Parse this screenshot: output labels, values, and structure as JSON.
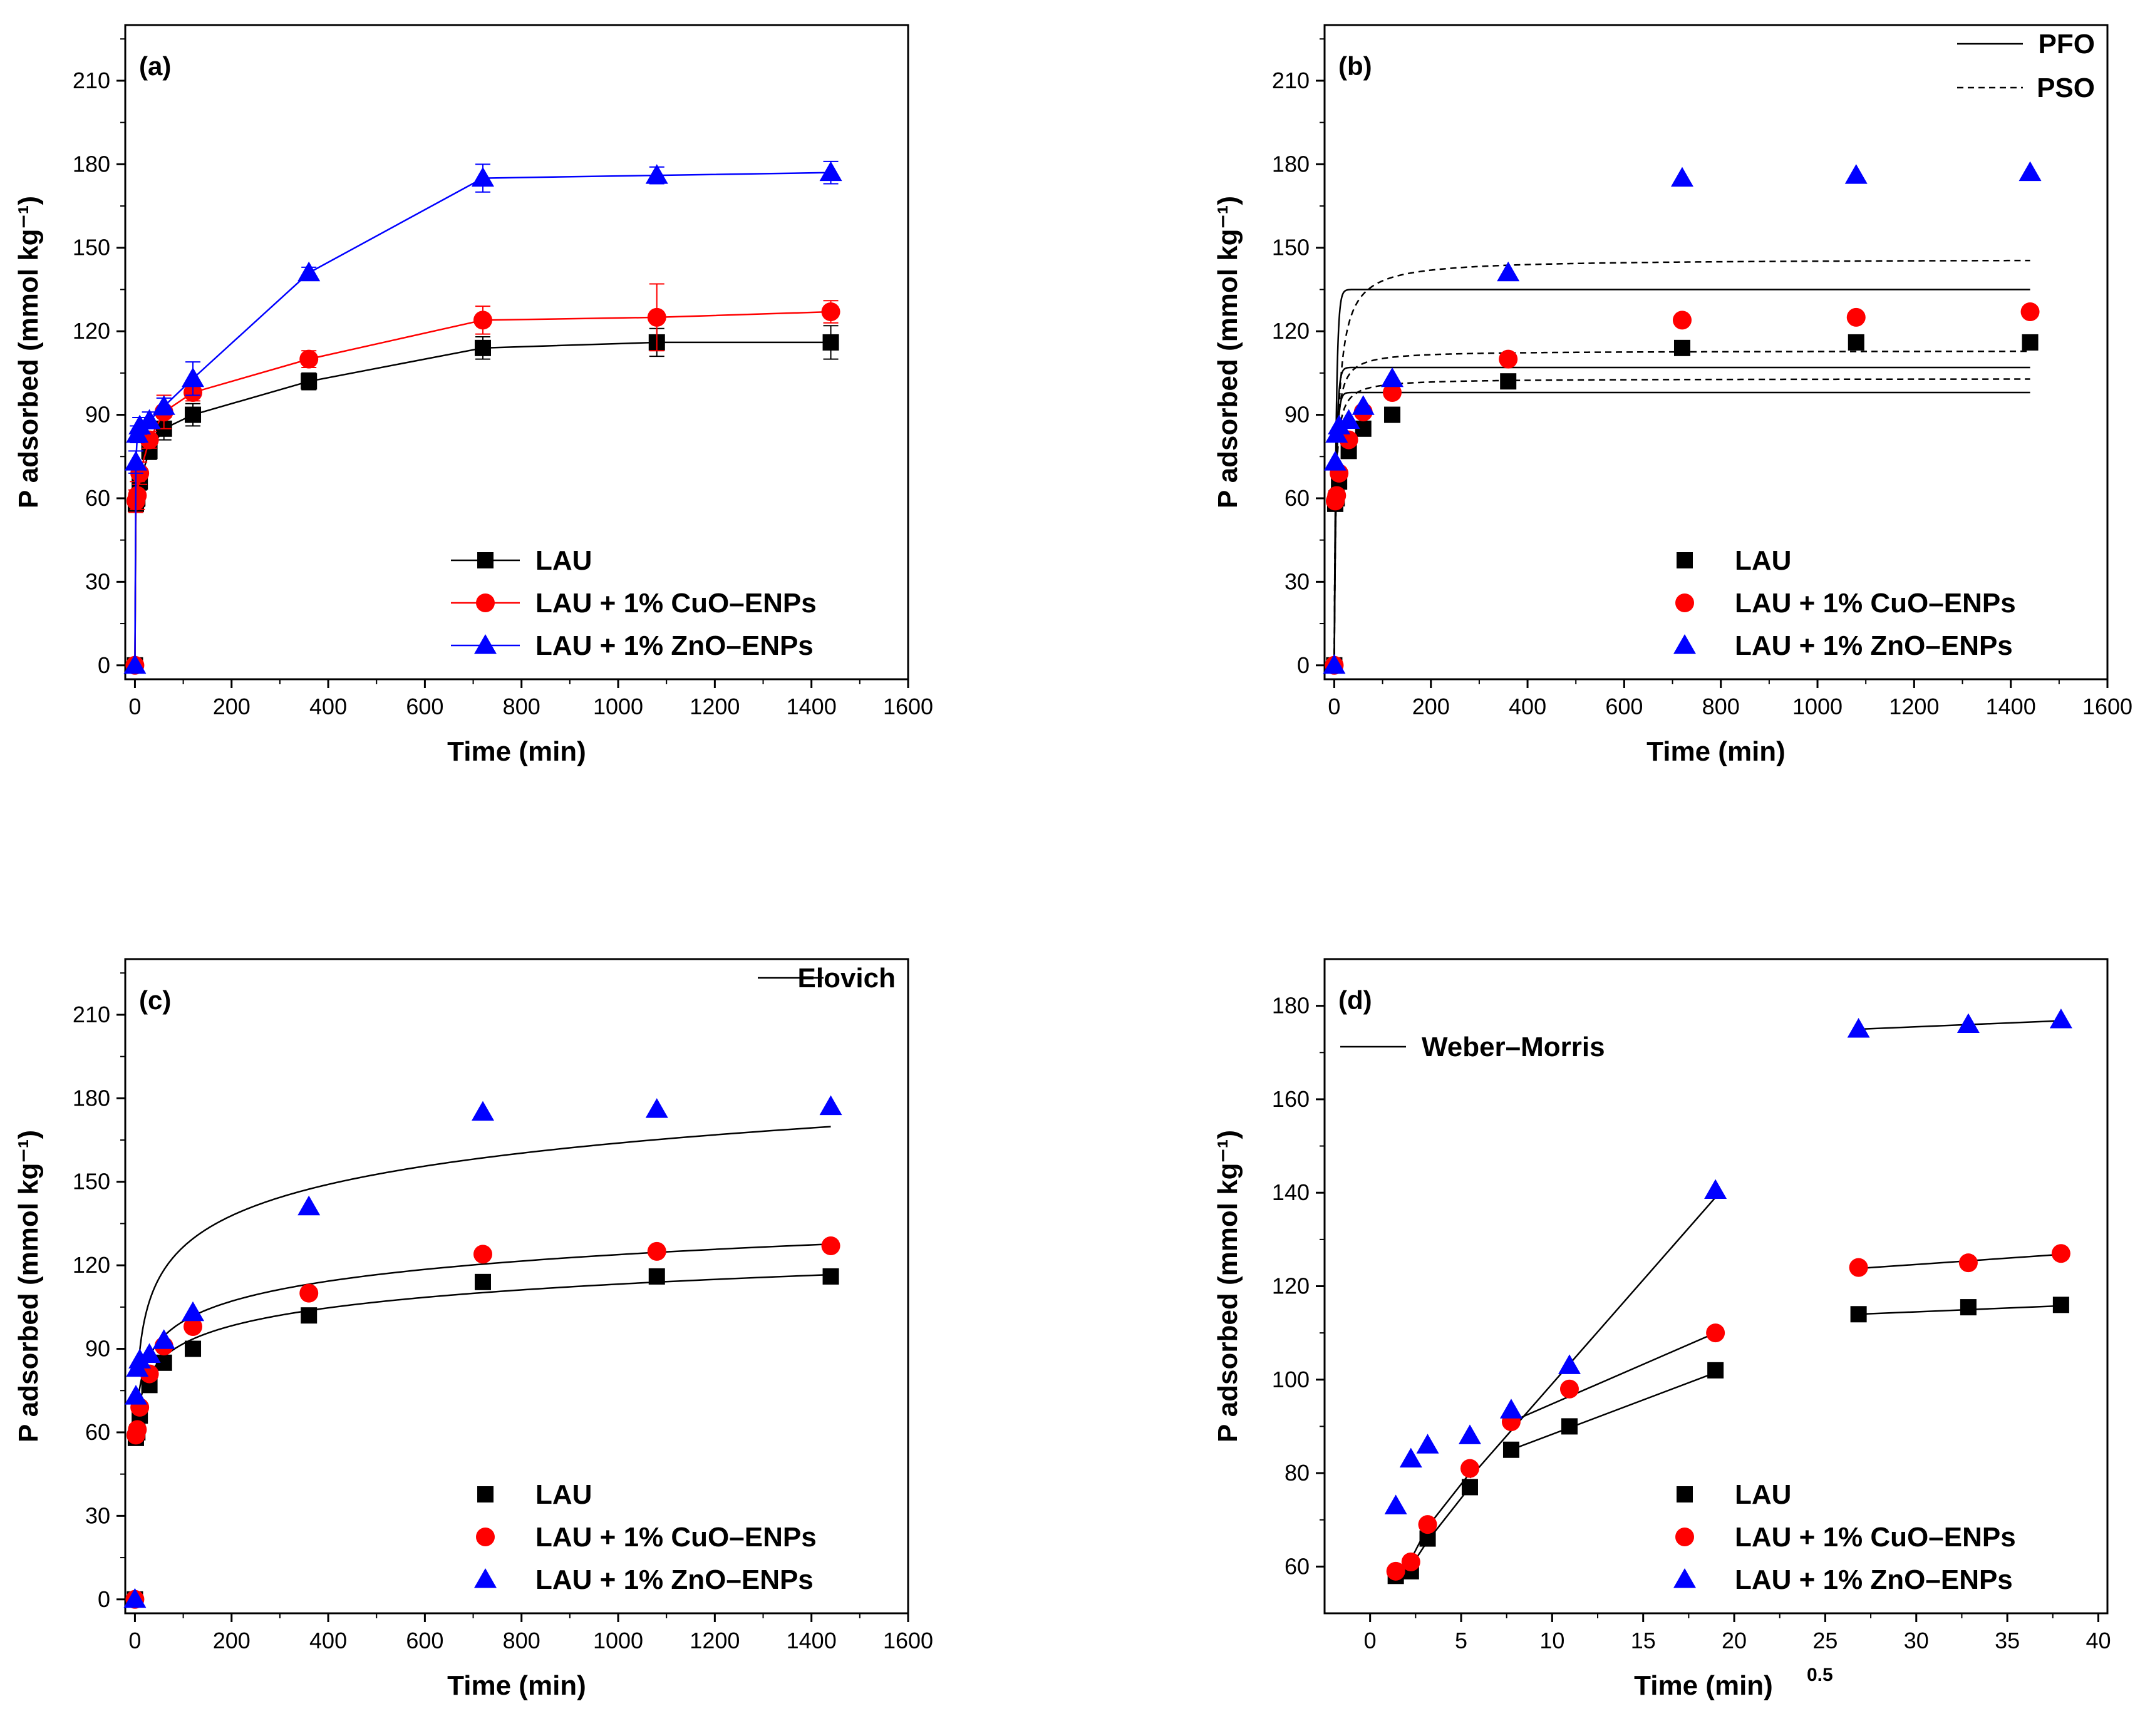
{
  "colors": {
    "black": "#000000",
    "red": "#ff0000",
    "blue": "#0000ff"
  },
  "chart_data": [
    {
      "id": "a",
      "type": "line",
      "panel_label": "(a)",
      "xlabel": "Time (min)",
      "ylabel": "P adsorbed (mmol kg⁻¹)",
      "xlim": [
        -20,
        1600
      ],
      "ylim": [
        -5,
        230
      ],
      "xticks": [
        0,
        200,
        400,
        600,
        800,
        1000,
        1200,
        1400,
        1600
      ],
      "yticks": [
        0,
        30,
        60,
        90,
        120,
        150,
        180,
        210
      ],
      "legend": "bottom-right",
      "series": [
        {
          "name": "LAU",
          "color": "black",
          "marker": "square",
          "x": [
            0,
            2,
            5,
            10,
            30,
            60,
            120,
            360,
            720,
            1080,
            1440
          ],
          "y": [
            0,
            58,
            60,
            66,
            77,
            85,
            90,
            102,
            114,
            116,
            116
          ],
          "err": [
            0,
            3,
            3,
            3,
            3,
            4,
            4,
            3,
            4,
            5,
            6
          ]
        },
        {
          "name": "LAU + 1% CuO–ENPs",
          "color": "red",
          "marker": "circle",
          "x": [
            0,
            2,
            5,
            10,
            30,
            60,
            120,
            360,
            720,
            1080,
            1440
          ],
          "y": [
            0,
            59,
            61,
            69,
            81,
            91,
            98,
            110,
            124,
            125,
            127
          ],
          "err": [
            0,
            4,
            5,
            4,
            3,
            6,
            3,
            3,
            5,
            12,
            4
          ]
        },
        {
          "name": "LAU + 1% ZnO–ENPs",
          "color": "blue",
          "marker": "triangle",
          "x": [
            0,
            2,
            5,
            10,
            30,
            60,
            120,
            360,
            720,
            1080,
            1440
          ],
          "y": [
            0,
            73,
            83,
            86,
            88,
            93,
            103,
            141,
            175,
            176,
            177
          ],
          "err": [
            0,
            4,
            3,
            3,
            3,
            3,
            6,
            2,
            5,
            3,
            4
          ]
        }
      ]
    },
    {
      "id": "b",
      "type": "scatter",
      "panel_label": "(b)",
      "xlabel": "Time (min)",
      "ylabel": "P adsorbed (mmol kg⁻¹)",
      "xlim": [
        -20,
        1600
      ],
      "ylim": [
        -5,
        230
      ],
      "xticks": [
        0,
        200,
        400,
        600,
        800,
        1000,
        1200,
        1400,
        1600
      ],
      "yticks": [
        0,
        30,
        60,
        90,
        120,
        150,
        180,
        210
      ],
      "legend": "bottom-right",
      "fit_legend": [
        "PFO",
        "PSO"
      ],
      "series": [
        {
          "name": "LAU",
          "color": "black",
          "marker": "square",
          "x": [
            0,
            2,
            5,
            10,
            30,
            60,
            120,
            360,
            720,
            1080,
            1440
          ],
          "y": [
            0,
            58,
            60,
            66,
            77,
            85,
            90,
            102,
            114,
            116,
            116
          ]
        },
        {
          "name": "LAU + 1% CuO–ENPs",
          "color": "red",
          "marker": "circle",
          "x": [
            0,
            2,
            5,
            10,
            30,
            60,
            120,
            360,
            720,
            1080,
            1440
          ],
          "y": [
            0,
            59,
            61,
            69,
            81,
            91,
            98,
            110,
            124,
            125,
            127
          ]
        },
        {
          "name": "LAU + 1% ZnO–ENPs",
          "color": "blue",
          "marker": "triangle",
          "x": [
            0,
            2,
            5,
            10,
            30,
            60,
            120,
            360,
            720,
            1080,
            1440
          ],
          "y": [
            0,
            73,
            83,
            86,
            88,
            93,
            103,
            141,
            175,
            176,
            177
          ]
        }
      ],
      "fits": [
        {
          "model": "PFO",
          "qe": 98,
          "k": 0.25,
          "xmax": 1440
        },
        {
          "model": "PFO",
          "qe": 107,
          "k": 0.25,
          "xmax": 1440
        },
        {
          "model": "PFO",
          "qe": 135,
          "k": 0.25,
          "xmax": 1440
        },
        {
          "model": "PSO",
          "qe": 103,
          "k": 0.004,
          "xmax": 1440
        },
        {
          "model": "PSO",
          "qe": 113,
          "k": 0.0035,
          "xmax": 1440
        },
        {
          "model": "PSO",
          "qe": 146,
          "k": 0.0012,
          "xmax": 1440
        }
      ]
    },
    {
      "id": "c",
      "type": "scatter",
      "panel_label": "(c)",
      "xlabel": "Time (min)",
      "ylabel": "P adsorbed (mmol kg⁻¹)",
      "xlim": [
        -20,
        1600
      ],
      "ylim": [
        -5,
        230
      ],
      "xticks": [
        0,
        200,
        400,
        600,
        800,
        1000,
        1200,
        1400,
        1600
      ],
      "yticks": [
        0,
        30,
        60,
        90,
        120,
        150,
        180,
        210
      ],
      "legend": "bottom-right",
      "fit_legend": [
        "Elovich"
      ],
      "series": [
        {
          "name": "LAU",
          "color": "black",
          "marker": "square",
          "x": [
            0,
            2,
            5,
            10,
            30,
            60,
            120,
            360,
            720,
            1080,
            1440
          ],
          "y": [
            0,
            58,
            60,
            66,
            77,
            85,
            90,
            102,
            114,
            116,
            116
          ]
        },
        {
          "name": "LAU + 1% CuO–ENPs",
          "color": "red",
          "marker": "circle",
          "x": [
            0,
            2,
            5,
            10,
            30,
            60,
            120,
            360,
            720,
            1080,
            1440
          ],
          "y": [
            0,
            59,
            61,
            69,
            81,
            91,
            98,
            110,
            124,
            125,
            127
          ]
        },
        {
          "name": "LAU + 1% ZnO–ENPs",
          "color": "blue",
          "marker": "triangle",
          "x": [
            0,
            2,
            5,
            10,
            30,
            60,
            120,
            360,
            720,
            1080,
            1440
          ],
          "y": [
            0,
            73,
            83,
            86,
            88,
            93,
            103,
            141,
            175,
            176,
            177
          ]
        }
      ],
      "fits": [
        {
          "model": "Elovich",
          "a": 49,
          "b": 9.3,
          "xmin": 2,
          "xmax": 1440
        },
        {
          "model": "Elovich",
          "a": 52,
          "b": 10.4,
          "xmin": 2,
          "xmax": 1440
        },
        {
          "model": "Elovich",
          "a": 52,
          "b": 16.2,
          "xmin": 10,
          "xmax": 1440
        }
      ]
    },
    {
      "id": "d",
      "type": "scatter",
      "panel_label": "(d)",
      "xlabel": "Time (min)",
      "xlabel_sup": "0.5",
      "ylabel": "P adsorbed (mmol kg⁻¹)",
      "xlim": [
        -2.5,
        40.5
      ],
      "ylim": [
        50,
        190
      ],
      "xticks": [
        0,
        5,
        10,
        15,
        20,
        25,
        30,
        35,
        40
      ],
      "yticks": [
        60,
        80,
        100,
        120,
        140,
        160,
        180
      ],
      "legend": "bottom-right",
      "fit_legend": [
        "Weber–Morris"
      ],
      "series": [
        {
          "name": "LAU",
          "color": "black",
          "marker": "square",
          "x": [
            1.41,
            2.24,
            3.16,
            5.48,
            7.75,
            10.95,
            18.97,
            26.83,
            32.86,
            37.95
          ],
          "y": [
            58,
            59,
            66,
            77,
            85,
            90,
            102,
            114,
            115.5,
            116
          ]
        },
        {
          "name": "LAU + 1% CuO–ENPs",
          "color": "red",
          "marker": "circle",
          "x": [
            1.41,
            2.24,
            3.16,
            5.48,
            7.75,
            10.95,
            18.97,
            26.83,
            32.86,
            37.95
          ],
          "y": [
            59,
            61,
            69,
            81,
            91,
            98,
            110,
            124,
            125,
            127
          ]
        },
        {
          "name": "LAU + 1% ZnO–ENPs",
          "color": "blue",
          "marker": "triangle",
          "x": [
            1.41,
            2.24,
            3.16,
            5.48,
            7.75,
            10.95,
            18.97,
            26.83,
            32.86,
            37.95
          ],
          "y": [
            73,
            83,
            86,
            88,
            93.5,
            103,
            140.5,
            175,
            176,
            177
          ]
        }
      ],
      "fits": [
        {
          "model": "Weber–Morris",
          "x": [
            1.41,
            2.24,
            3.16,
            5.48
          ],
          "y": [
            57.5,
            60,
            65.5,
            77
          ]
        },
        {
          "model": "Weber–Morris",
          "x": [
            1.41,
            2.24,
            3.16,
            5.48
          ],
          "y": [
            58.5,
            61.5,
            68.5,
            80
          ]
        },
        {
          "model": "Weber–Morris",
          "x": [
            7.75,
            18.97
          ],
          "y": [
            85,
            101.5
          ]
        },
        {
          "model": "Weber–Morris",
          "x": [
            7.75,
            18.97
          ],
          "y": [
            91,
            110
          ]
        },
        {
          "model": "Weber–Morris",
          "x": [
            5.48,
            18.97
          ],
          "y": [
            79,
            139
          ]
        },
        {
          "model": "Weber–Morris",
          "x": [
            26.83,
            37.95
          ],
          "y": [
            114,
            115.8
          ]
        },
        {
          "model": "Weber–Morris",
          "x": [
            26.83,
            37.95
          ],
          "y": [
            123.8,
            126.8
          ]
        },
        {
          "model": "Weber–Morris",
          "x": [
            26.83,
            37.95
          ],
          "y": [
            175,
            176.8
          ]
        }
      ]
    }
  ]
}
